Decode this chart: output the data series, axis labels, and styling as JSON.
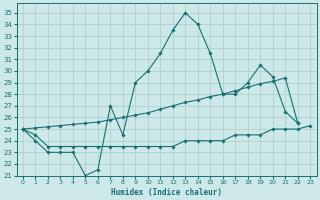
{
  "xlabel": "Humidex (Indice chaleur)",
  "xlim": [
    -0.5,
    23.5
  ],
  "ylim": [
    21,
    35.8
  ],
  "xticks": [
    0,
    1,
    2,
    3,
    4,
    5,
    6,
    7,
    8,
    9,
    10,
    11,
    12,
    13,
    14,
    15,
    16,
    17,
    18,
    19,
    20,
    21,
    22,
    23
  ],
  "yticks": [
    21,
    22,
    23,
    24,
    25,
    26,
    27,
    28,
    29,
    30,
    31,
    32,
    33,
    34,
    35
  ],
  "background_color": "#cce8e8",
  "grid_color": "#aacccc",
  "line_color": "#1a7070",
  "line1_x": [
    0,
    1,
    2,
    3,
    4,
    5,
    6,
    7,
    8,
    9,
    10,
    11,
    12,
    13,
    14,
    15,
    16,
    17,
    18,
    19,
    20,
    21,
    22
  ],
  "line1_y": [
    25,
    24,
    23,
    23,
    23,
    21,
    21.5,
    27,
    24.5,
    29,
    30,
    31.5,
    33.5,
    35,
    34,
    31.5,
    28,
    28,
    29,
    30.5,
    29.5,
    26.5,
    25.5
  ],
  "line2_x": [
    0,
    1,
    2,
    3,
    4,
    5,
    6,
    7,
    8,
    9,
    10,
    11,
    12,
    13,
    14,
    15,
    16,
    17,
    18,
    19,
    20,
    21,
    22
  ],
  "line2_y": [
    25,
    25.1,
    25.2,
    25.3,
    25.4,
    25.5,
    25.6,
    25.8,
    26.0,
    26.2,
    26.4,
    26.7,
    27.0,
    27.3,
    27.5,
    27.8,
    28.0,
    28.3,
    28.6,
    28.9,
    29.1,
    29.4,
    25.5
  ],
  "line3_x": [
    0,
    1,
    2,
    3,
    4,
    5,
    6,
    7,
    8,
    9,
    10,
    11,
    12,
    13,
    14,
    15,
    16,
    17,
    18,
    19,
    20,
    21,
    22,
    23
  ],
  "line3_y": [
    25,
    24.5,
    23.5,
    23.5,
    23.5,
    23.5,
    23.5,
    23.5,
    23.5,
    23.5,
    23.5,
    23.5,
    23.5,
    24.0,
    24.0,
    24.0,
    24.0,
    24.5,
    24.5,
    24.5,
    25.0,
    25.0,
    25.0,
    25.3
  ]
}
